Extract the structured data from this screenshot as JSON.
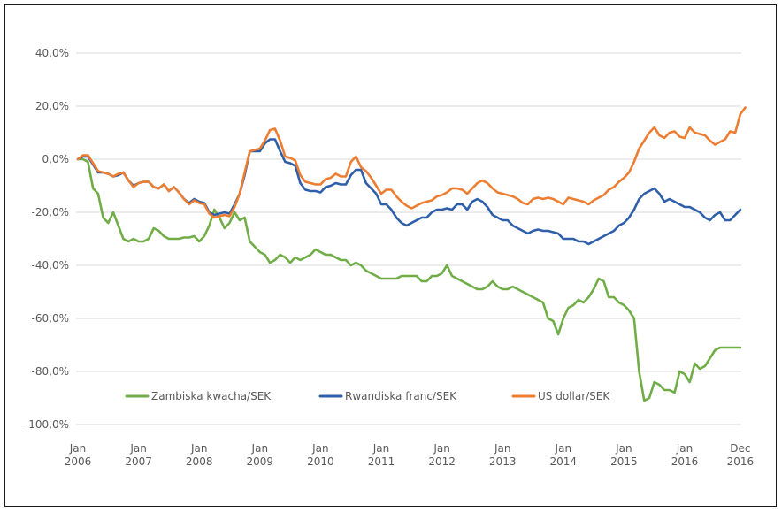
{
  "chart_data": {
    "type": "line",
    "title": "",
    "xlabel": "",
    "ylabel": "",
    "ylim": [
      -100,
      40
    ],
    "y_ticks": [
      40,
      20,
      0,
      -20,
      -40,
      -60,
      -80,
      -100
    ],
    "y_tick_labels": [
      "40,0%",
      "20,0%",
      "0,0%",
      "-20,0%",
      "-40,0%",
      "-60,0%",
      "-80,0%",
      "-100,0%"
    ],
    "x_start": "Jan 2006",
    "x_end": "Dec 2016",
    "x_frequency": "monthly",
    "x_tick_labels": [
      {
        "month_index": 0,
        "line1": "Jan",
        "line2": "2006"
      },
      {
        "month_index": 12,
        "line1": "Jan",
        "line2": "2007"
      },
      {
        "month_index": 24,
        "line1": "Jan",
        "line2": "2008"
      },
      {
        "month_index": 36,
        "line1": "Jan",
        "line2": "2009"
      },
      {
        "month_index": 48,
        "line1": "Jan",
        "line2": "2010"
      },
      {
        "month_index": 60,
        "line1": "Jan",
        "line2": "2011"
      },
      {
        "month_index": 72,
        "line1": "Jan",
        "line2": "2012"
      },
      {
        "month_index": 84,
        "line1": "Jan",
        "line2": "2013"
      },
      {
        "month_index": 96,
        "line1": "Jan",
        "line2": "2014"
      },
      {
        "month_index": 108,
        "line1": "Jan",
        "line2": "2015"
      },
      {
        "month_index": 120,
        "line1": "Jan",
        "line2": "2016"
      },
      {
        "month_index": 131,
        "line1": "Dec",
        "line2": "2016"
      }
    ],
    "grid": true,
    "legend_position": "bottom-inside",
    "series": [
      {
        "name": "Zambiska kwacha/SEK",
        "color": "#70AD47",
        "values": [
          0,
          0,
          -1,
          -11,
          -13,
          -22,
          -24,
          -20,
          -25,
          -30,
          -31,
          -30,
          -31,
          -31,
          -30,
          -26,
          -27,
          -29,
          -30,
          -30,
          -30,
          -29.5,
          -29.5,
          -29,
          -31,
          -29,
          -25,
          -19,
          -22,
          -26,
          -24,
          -20,
          -23,
          -22,
          -31,
          -33,
          -35,
          -36,
          -39,
          -38,
          -36,
          -37,
          -39,
          -37,
          -38,
          -37,
          -36,
          -34,
          -35,
          -36,
          -36,
          -37,
          -38,
          -38,
          -40,
          -39,
          -40,
          -42,
          -43,
          -44,
          -45,
          -45,
          -45,
          -45,
          -44,
          -44,
          -44,
          -44,
          -46,
          -46,
          -44,
          -44,
          -43,
          -40,
          -44,
          -45,
          -46,
          -47,
          -48,
          -49,
          -49,
          -48,
          -46,
          -48,
          -49,
          -49,
          -48,
          -49,
          -50,
          -51,
          -52,
          -53,
          -54,
          -60,
          -61,
          -66,
          -60,
          -56,
          -55,
          -53,
          -54,
          -52,
          -49,
          -45,
          -46,
          -52,
          -52,
          -54,
          -55,
          -57,
          -60,
          -80,
          -91,
          -90,
          -84,
          -85,
          -87,
          -87,
          -88,
          -80,
          -81,
          -84,
          -77,
          -79,
          -78,
          -75,
          -72,
          -71,
          -71,
          -71,
          -71,
          -71
        ]
      },
      {
        "name": "Rwandiska franc/SEK",
        "color": "#2E5FA8",
        "values": [
          0,
          1,
          1,
          -2,
          -5,
          -5,
          -5.5,
          -6.5,
          -6,
          -5,
          -8,
          -10,
          -9,
          -8.5,
          -8.5,
          -10.5,
          -11,
          -9.5,
          -12,
          -10.5,
          -12.5,
          -15,
          -16.5,
          -15,
          -16,
          -16.5,
          -20,
          -21,
          -20.5,
          -20,
          -20.5,
          -17,
          -13,
          -6,
          3,
          3,
          3,
          6,
          7.5,
          7.5,
          3,
          -1,
          -1.5,
          -2.5,
          -9,
          -11.5,
          -12,
          -12,
          -12.5,
          -10.5,
          -10,
          -9,
          -9.5,
          -9.5,
          -6,
          -4,
          -4,
          -9,
          -11,
          -13,
          -17,
          -17,
          -19,
          -22,
          -24,
          -25,
          -24,
          -23,
          -22,
          -22,
          -20,
          -19,
          -19,
          -18.5,
          -19,
          -17,
          -17,
          -19,
          -16,
          -15,
          -16,
          -18,
          -21,
          -22,
          -23,
          -23,
          -25,
          -26,
          -27,
          -28,
          -27,
          -26.5,
          -27,
          -27,
          -27.5,
          -28,
          -30,
          -30,
          -30,
          -31,
          -31,
          -32,
          -31,
          -30,
          -29,
          -28,
          -27,
          -25,
          -24,
          -22,
          -19,
          -15,
          -13,
          -12,
          -11,
          -13,
          -16,
          -15,
          -16,
          -17,
          -18,
          -18,
          -19,
          -20,
          -22,
          -23,
          -21,
          -20,
          -23,
          -23,
          -21,
          -19
        ]
      },
      {
        "name": "US dollar/SEK",
        "color": "#ED7D31",
        "values": [
          0,
          1.5,
          1.5,
          -1.5,
          -4.5,
          -5,
          -5.5,
          -6.5,
          -5.5,
          -5,
          -8,
          -10.5,
          -9,
          -8.5,
          -8.5,
          -10.5,
          -11,
          -9.5,
          -12,
          -10.5,
          -12.5,
          -15,
          -17,
          -15.5,
          -16.5,
          -17,
          -20.5,
          -22,
          -21.5,
          -21,
          -21.5,
          -18,
          -13,
          -5,
          3,
          3.5,
          4,
          7,
          11,
          11.5,
          7,
          1,
          0.5,
          -0.5,
          -6,
          -8.5,
          -9,
          -9.5,
          -9.5,
          -7.5,
          -7,
          -5.5,
          -6.5,
          -6.5,
          -1,
          1,
          -3,
          -4.5,
          -7,
          -10,
          -13,
          -11.5,
          -11.5,
          -14,
          -16,
          -17.5,
          -18.5,
          -17.5,
          -16.5,
          -16,
          -15.5,
          -14,
          -13.5,
          -12.5,
          -11,
          -11,
          -11.5,
          -13,
          -11,
          -9,
          -8,
          -9,
          -11,
          -12.5,
          -13,
          -13.5,
          -14,
          -15,
          -16.5,
          -17,
          -15,
          -14.5,
          -15,
          -14.5,
          -15,
          -16,
          -17,
          -14.5,
          -15,
          -15.5,
          -16,
          -17,
          -15.5,
          -14.5,
          -13.5,
          -11.5,
          -10.5,
          -8.5,
          -7,
          -5,
          -1,
          4,
          7,
          10,
          12,
          9,
          8,
          10,
          10.5,
          8.5,
          8,
          12,
          10,
          9.5,
          9,
          7,
          5.5,
          6.5,
          7.5,
          10.5,
          10,
          17,
          19.5
        ]
      }
    ]
  }
}
